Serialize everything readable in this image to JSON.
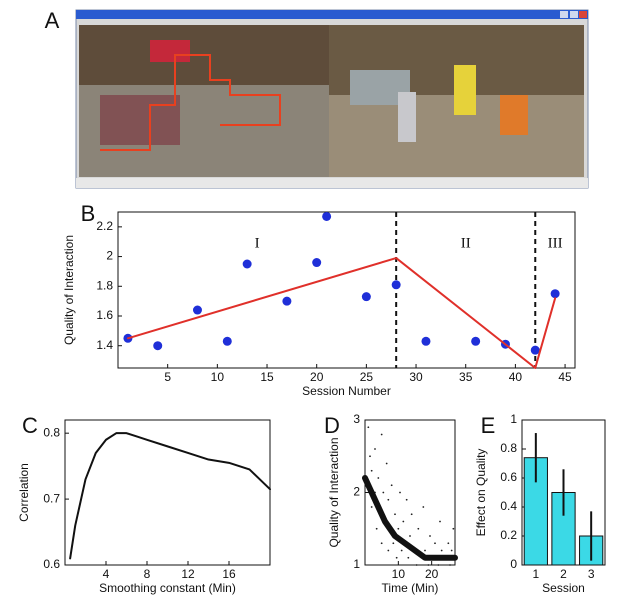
{
  "chart_data": [
    {
      "type": "image",
      "panel": "A"
    },
    {
      "type": "scatter",
      "panel": "B",
      "xlabel": "Session Number",
      "ylabel": "Quality of Interaction",
      "xlim": [
        0,
        46
      ],
      "xticks": [
        5,
        10,
        15,
        20,
        25,
        30,
        35,
        40,
        45
      ],
      "ylim": [
        1.25,
        2.3
      ],
      "yticks": [
        1.4,
        1.6,
        1.8,
        2.0,
        2.2
      ],
      "vlines": [
        28,
        42
      ],
      "regions": [
        "I",
        "II",
        "III"
      ],
      "series": [
        {
          "style": "markers",
          "color": "#1f2fd8",
          "marker_size": 4.5,
          "x": [
            1,
            4,
            8,
            11,
            13,
            17,
            20,
            21,
            25,
            28,
            31,
            36,
            39,
            42,
            44
          ],
          "values": [
            1.45,
            1.4,
            1.64,
            1.43,
            1.95,
            1.7,
            1.96,
            2.27,
            1.73,
            1.81,
            1.43,
            1.43,
            1.41,
            1.37,
            1.75
          ]
        },
        {
          "style": "line",
          "color": "#e0302a",
          "line_width": 2,
          "x": [
            1,
            28,
            42,
            44
          ],
          "values": [
            1.45,
            1.99,
            1.25,
            1.72
          ]
        }
      ]
    },
    {
      "type": "scatter",
      "panel": "C",
      "xlabel": "Smoothing constant (Min)",
      "ylabel": "Correlation",
      "xlim": [
        0,
        20
      ],
      "xticks": [
        4,
        8,
        12,
        16
      ],
      "ylim": [
        0.6,
        0.82
      ],
      "yticks": [
        0.6,
        0.7,
        0.8
      ],
      "series": [
        {
          "style": "line",
          "color": "#111111",
          "line_width": 2,
          "x": [
            0.5,
            1,
            2,
            3,
            4,
            5,
            6,
            7,
            8,
            10,
            12,
            14,
            16,
            18,
            20
          ],
          "values": [
            0.61,
            0.66,
            0.73,
            0.77,
            0.79,
            0.8,
            0.8,
            0.795,
            0.79,
            0.78,
            0.77,
            0.76,
            0.755,
            0.745,
            0.715
          ]
        }
      ]
    },
    {
      "type": "scatter",
      "panel": "D",
      "xlabel": "Time (Min)",
      "ylabel": "Quality of Interaction",
      "xlim": [
        0,
        27
      ],
      "xticks": [
        10,
        20
      ],
      "ylim": [
        1,
        3
      ],
      "yticks": [
        1,
        2,
        3
      ],
      "series": [
        {
          "style": "markers",
          "color": "#222222",
          "marker_size": 0.9,
          "x": [
            1,
            1.5,
            2,
            2,
            3,
            3,
            3.5,
            4,
            4.5,
            5,
            5,
            5.5,
            6,
            6.5,
            7,
            7,
            7.5,
            8,
            8.5,
            9,
            9.5,
            10,
            10.5,
            11,
            11.5,
            12,
            12.5,
            13,
            13.5,
            14,
            15,
            15.5,
            16,
            17,
            17.5,
            18,
            19,
            19.5,
            20,
            21,
            22,
            22.5,
            23,
            24,
            25,
            25.5,
            26,
            26.5
          ],
          "values": [
            2.9,
            2.5,
            2.3,
            1.8,
            2.6,
            2.0,
            1.5,
            2.2,
            1.7,
            2.8,
            1.3,
            2.0,
            1.6,
            2.4,
            1.2,
            1.9,
            1.5,
            2.1,
            1.3,
            1.7,
            1.1,
            1.5,
            2.0,
            1.2,
            1.6,
            1.3,
            1.9,
            1.1,
            1.4,
            1.7,
            1.2,
            1.0,
            1.5,
            1.1,
            1.8,
            1.2,
            1.0,
            1.4,
            1.1,
            1.3,
            1.0,
            1.6,
            1.2,
            1.1,
            1.3,
            1.0,
            1.2,
            1.5
          ]
        },
        {
          "style": "line",
          "color": "#111111",
          "line_width": 6,
          "x": [
            0,
            3,
            6,
            9,
            12,
            15,
            18,
            21,
            24,
            27
          ],
          "values": [
            2.2,
            1.9,
            1.6,
            1.4,
            1.3,
            1.2,
            1.1,
            1.1,
            1.1,
            1.1
          ]
        }
      ]
    },
    {
      "type": "bar",
      "panel": "E",
      "xlabel": "Session",
      "ylabel": "Effect on Quality",
      "categories": [
        "1",
        "2",
        "3"
      ],
      "values": [
        0.74,
        0.5,
        0.2
      ],
      "errors": [
        0.17,
        0.16,
        0.17
      ],
      "color": "#3bd9e6",
      "ylim": [
        0,
        1
      ],
      "yticks": [
        0,
        0.2,
        0.4,
        0.6,
        0.8,
        1
      ]
    }
  ]
}
